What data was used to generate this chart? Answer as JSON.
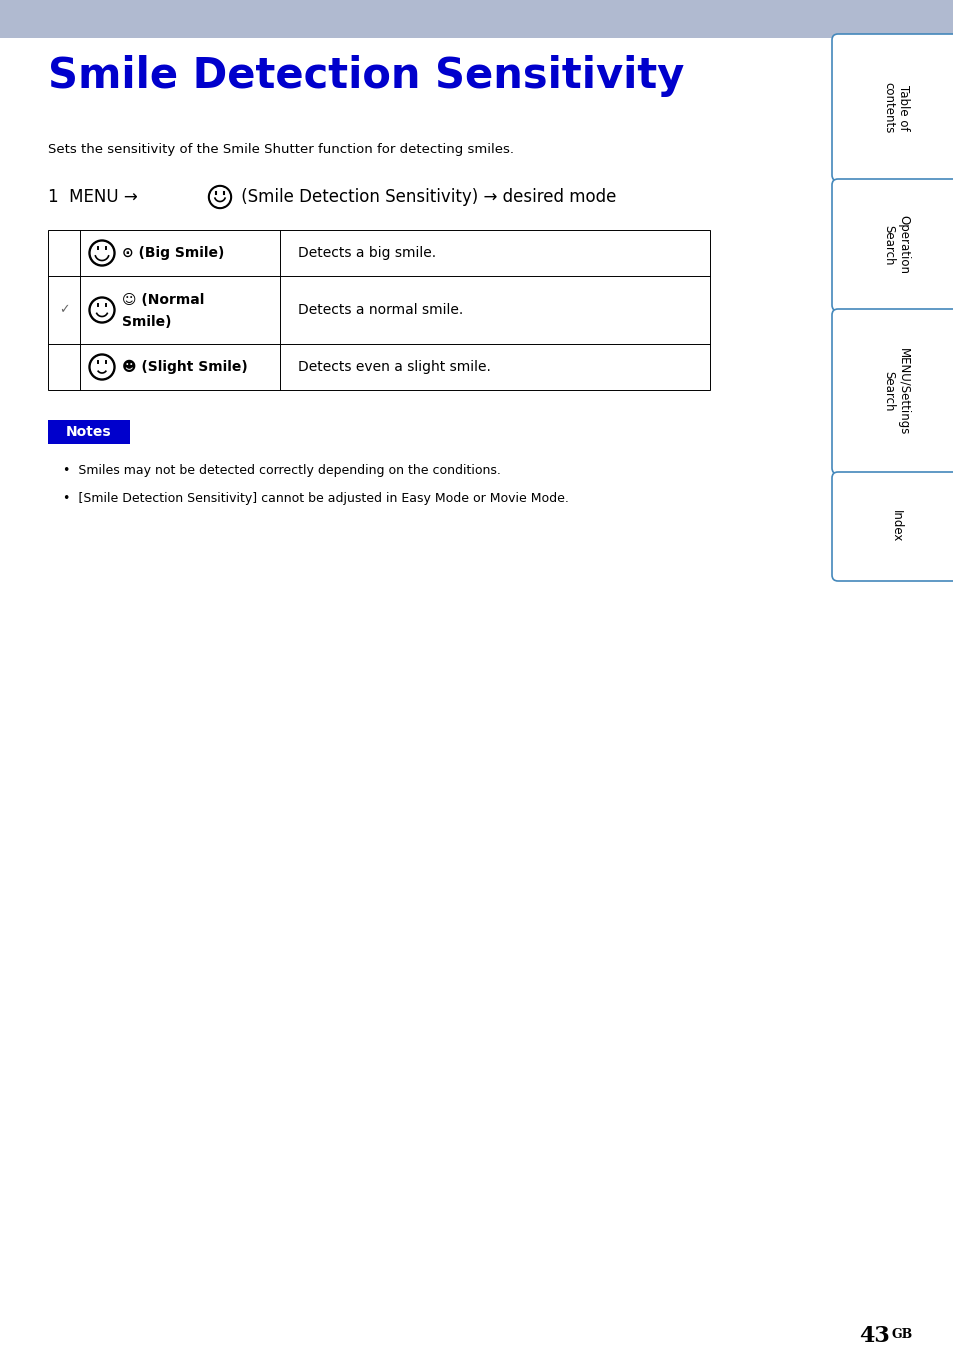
{
  "title": "Smile Detection Sensitivity",
  "title_color": "#0000CC",
  "header_bg_color": "#B0BAD0",
  "subtitle": "Sets the sensitivity of the Smile Shutter function for detecting smiles.",
  "table_rows": [
    {
      "check": "",
      "label": "⊙ (Big Smile)",
      "description": "Detects a big smile.",
      "smile_level": 2
    },
    {
      "check": "✓",
      "label": "☺ (Normal\nSmile)",
      "description": "Detects a normal smile.",
      "smile_level": 1
    },
    {
      "check": "",
      "label": "☻ (Slight Smile)",
      "description": "Detects even a slight smile.",
      "smile_level": 0
    }
  ],
  "notes_bg": "#0000CC",
  "notes_text": "Notes",
  "notes_color": "#ffffff",
  "bullet_points": [
    "Smiles may not be detected correctly depending on the conditions.",
    "[Smile Detection Sensitivity] cannot be adjusted in Easy Mode or Movie Mode."
  ],
  "sidebar_labels": [
    "Table of\ncontents",
    "Operation\nSearch",
    "MENU/Settings\nSearch",
    "Index"
  ],
  "sidebar_border": "#4488BB",
  "page_number": "43",
  "page_suffix": "GB",
  "bg_color": "#ffffff"
}
